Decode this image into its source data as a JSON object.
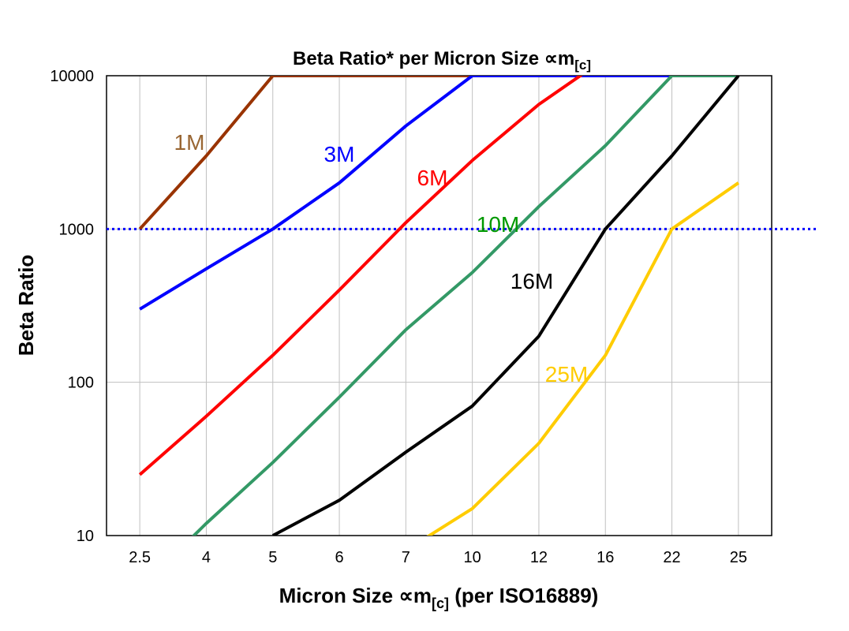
{
  "chart_data": {
    "type": "line",
    "title": "Beta Ratio* per Micron Size ∝m",
    "title_subscript": "[c]",
    "xlabel": "Micron Size ∝m",
    "xlabel_subscript": "[c]",
    "xlabel_suffix": " (per ISO16889)",
    "ylabel": "Beta Ratio",
    "yscale": "log",
    "ylim": [
      10,
      10000
    ],
    "yticks": [
      "10",
      "100",
      "1000",
      "10000"
    ],
    "categories": [
      "2.5",
      "4",
      "5",
      "6",
      "7",
      "10",
      "12",
      "16",
      "22",
      "25"
    ],
    "grid": true,
    "reference_line": {
      "y": 1000,
      "color": "#0000FF",
      "style": "dotted"
    },
    "series": [
      {
        "name": "1M",
        "color": "#993300",
        "label_color": "#996633",
        "values": [
          1000,
          3000,
          10000,
          10000,
          10000,
          10000,
          null,
          null,
          null,
          null
        ]
      },
      {
        "name": "3M",
        "color": "#0000FF",
        "label_color": "#0000FF",
        "values": [
          300,
          550,
          1000,
          2000,
          4700,
          10000,
          10000,
          10000,
          10000,
          null
        ]
      },
      {
        "name": "6M",
        "color": "#FF0000",
        "label_color": "#FF0000",
        "values": [
          25,
          60,
          150,
          400,
          1100,
          2800,
          6500,
          13000,
          null,
          null
        ]
      },
      {
        "name": "10M",
        "color": "#339966",
        "label_color": "#009900",
        "values": [
          4.5,
          12,
          30,
          80,
          220,
          520,
          1400,
          3500,
          10000,
          10000
        ]
      },
      {
        "name": "16M",
        "color": "#000000",
        "label_color": "#000000",
        "values": [
          null,
          null,
          10,
          17,
          35,
          70,
          200,
          1000,
          3000,
          10000
        ]
      },
      {
        "name": "25M",
        "color": "#FFCC00",
        "label_color": "#FFCC00",
        "values": [
          null,
          null,
          null,
          null,
          8,
          15,
          40,
          150,
          1000,
          2000
        ]
      }
    ]
  }
}
